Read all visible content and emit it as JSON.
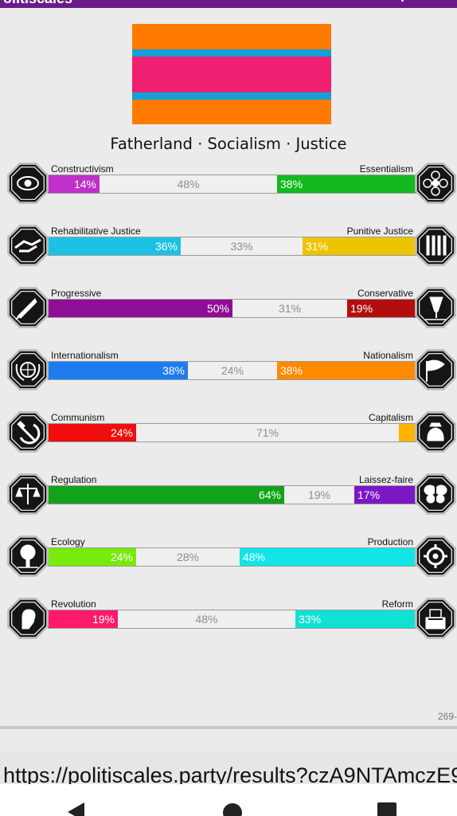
{
  "app": {
    "title_fragment": "olitiscales",
    "title_right_fragment": "l"
  },
  "flag": {
    "stripes": [
      {
        "color": "#ff7b00",
        "ratio": 0.25
      },
      {
        "color": "#13a0d8",
        "ratio": 0.07
      },
      {
        "color": "#ef1f72",
        "ratio": 0.36
      },
      {
        "color": "#13a0d8",
        "ratio": 0.07
      },
      {
        "color": "#ff7b00",
        "ratio": 0.25
      }
    ]
  },
  "slogan": "Fatherland · Socialism · Justice",
  "axes": [
    {
      "left_label": "Constructivism",
      "right_label": "Essentialism",
      "left_pct": 14,
      "mid_pct": 48,
      "right_pct": 38,
      "left_text": "14%",
      "mid_text": "48%",
      "right_text": "38%",
      "left_color": "#bf2fc9",
      "right_color": "#13b91f",
      "left_icon": "eye-icon",
      "right_icon": "flower-icon"
    },
    {
      "left_label": "Rehabilitative Justice",
      "right_label": "Punitive Justice",
      "left_pct": 36,
      "mid_pct": 33,
      "right_pct": 31,
      "left_text": "36%",
      "mid_text": "33%",
      "right_text": "31%",
      "left_color": "#1cc2e6",
      "right_color": "#eec400",
      "left_icon": "handshake-icon",
      "right_icon": "prison-bars-icon"
    },
    {
      "left_label": "Progressive",
      "right_label": "Conservative",
      "left_pct": 50,
      "mid_pct": 31,
      "right_pct": 19,
      "left_text": "50%",
      "mid_text": "31%",
      "right_text": "19%",
      "left_color": "#8f0e96",
      "right_color": "#b30e0e",
      "left_icon": "rocket-icon",
      "right_icon": "quill-icon"
    },
    {
      "left_label": "Internationalism",
      "right_label": "Nationalism",
      "left_pct": 38,
      "mid_pct": 24,
      "right_pct": 38,
      "left_text": "38%",
      "mid_text": "24%",
      "right_text": "38%",
      "left_color": "#1e7cf0",
      "right_color": "#ff8a00",
      "left_icon": "globe-wreath-icon",
      "right_icon": "flag-icon"
    },
    {
      "left_label": "Communism",
      "right_label": "Capitalism",
      "left_pct": 24,
      "mid_pct": 71,
      "right_pct": 5,
      "left_text": "24%",
      "mid_text": "71%",
      "right_text": "",
      "left_color": "#f00e0e",
      "right_color": "#ffb400",
      "left_icon": "hammer-sickle-icon",
      "right_icon": "money-bag-icon"
    },
    {
      "left_label": "Regulation",
      "right_label": "Laissez-faire",
      "left_pct": 64,
      "mid_pct": 19,
      "right_pct": 17,
      "left_text": "64%",
      "mid_text": "19%",
      "right_text": "17%",
      "left_color": "#12a31a",
      "right_color": "#7a18c4",
      "left_icon": "scales-icon",
      "right_icon": "butterfly-icon"
    },
    {
      "left_label": "Ecology",
      "right_label": "Production",
      "left_pct": 24,
      "mid_pct": 28,
      "right_pct": 48,
      "left_text": "24%",
      "mid_text": "28%",
      "right_text": "48%",
      "left_color": "#78ea0c",
      "right_color": "#10e6e6",
      "left_icon": "tree-icon",
      "right_icon": "gear-icon"
    },
    {
      "left_label": "Revolution",
      "right_label": "Reform",
      "left_pct": 19,
      "mid_pct": 48,
      "right_pct": 33,
      "left_text": "19%",
      "mid_text": "48%",
      "right_text": "33%",
      "left_color": "#ff1a6b",
      "right_color": "#0fe2d2",
      "left_icon": "raised-fist-icon",
      "right_icon": "ballot-icon"
    }
  ],
  "result_id": "269-",
  "url": "https://politiscales.party/results?czA9NTAmczE9",
  "nav": {
    "back_icon": "back-triangle-icon",
    "home_icon": "home-circle-icon",
    "recents_icon": "recents-square-icon"
  }
}
